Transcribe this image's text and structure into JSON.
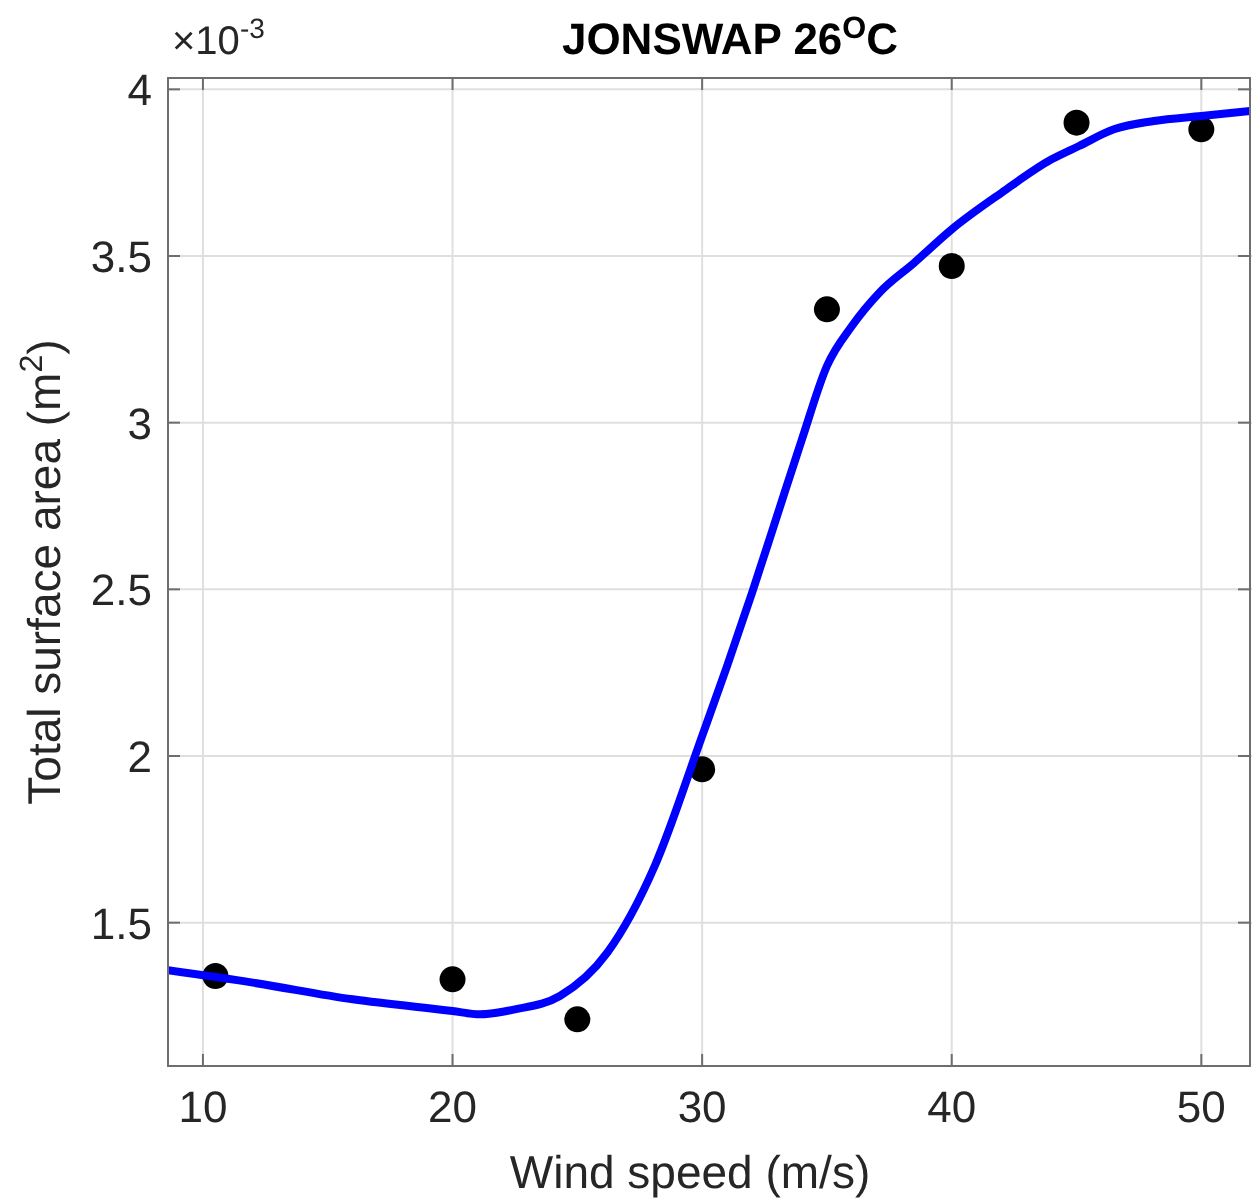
{
  "chart_data": {
    "type": "scatter",
    "title": "JONSWAP 26$^{O}$C",
    "xlabel": "Wind speed (m/s)",
    "ylabel": "Total surface area (m$^{2}$)",
    "annotations": [
      "×10$^{-3}$"
    ],
    "xlim": [
      8.6,
      51.95
    ],
    "xticks": [
      10,
      20,
      30,
      40,
      50
    ],
    "ylim": [
      1.07,
      4.034
    ],
    "yticks": [
      1.5,
      2,
      2.5,
      3,
      3.5,
      4
    ],
    "grid": true,
    "series": [
      {
        "color": "#000000",
        "marker": "circle",
        "x": [
          10.5,
          20,
          25,
          30,
          35,
          40,
          45,
          50
        ],
        "values": [
          1.34,
          1.33,
          1.21,
          1.96,
          3.34,
          3.47,
          3.9,
          3.88
        ]
      },
      {
        "type": "line",
        "color": "#0000ff",
        "marker": "none",
        "line_style": "solid",
        "x": [
          8.6,
          12,
          16,
          20,
          21.1,
          22.5,
          24.3,
          26.2,
          28.1,
          30,
          31,
          32,
          33,
          34,
          35,
          36,
          37.1,
          38.5,
          40,
          42,
          44,
          45.1,
          46.5,
          48.1,
          50,
          51.95
        ],
        "values": [
          1.357,
          1.32,
          1.27,
          1.235,
          1.225,
          1.24,
          1.28,
          1.41,
          1.67,
          2.06,
          2.27,
          2.49,
          2.72,
          2.95,
          3.17,
          3.29,
          3.39,
          3.48,
          3.58,
          3.69,
          3.79,
          3.83,
          3.88,
          3.905,
          3.92,
          3.935
        ]
      }
    ]
  }
}
